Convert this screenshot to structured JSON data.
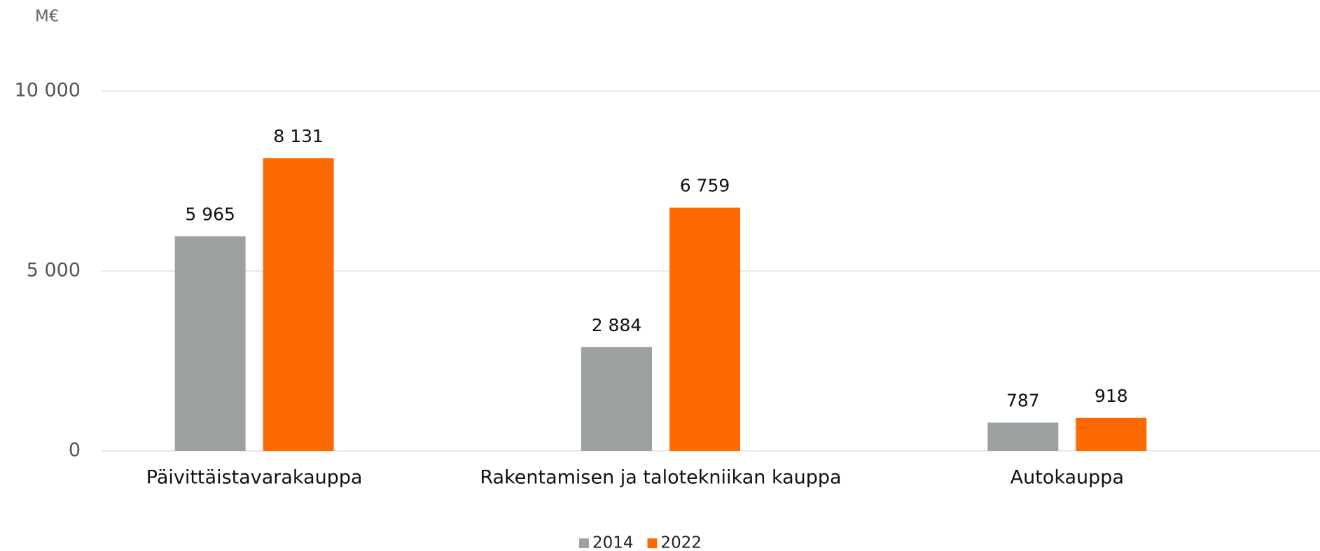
{
  "chart_data": {
    "type": "bar",
    "ylabel": "M€",
    "categories": [
      "Päivittäistavarakauppa",
      "Rakentamisen ja talotekniikan kauppa",
      "Autokauppa"
    ],
    "series": [
      {
        "name": "2014",
        "color": "#9ea1a2",
        "values": [
          5965,
          2884,
          787
        ],
        "value_labels": [
          "5 965",
          "2 884",
          "787"
        ]
      },
      {
        "name": "2022",
        "color": "#ff6a00",
        "values": [
          8131,
          6759,
          918
        ],
        "value_labels": [
          "8 131",
          "6 759",
          "918"
        ]
      }
    ],
    "ylim": [
      0,
      10000
    ],
    "yticks": [
      0,
      {
        "value": 5000,
        "label": "5 000"
      },
      {
        "value": 10000,
        "label": "10 000"
      }
    ],
    "grid": true,
    "legend": "bottom"
  }
}
